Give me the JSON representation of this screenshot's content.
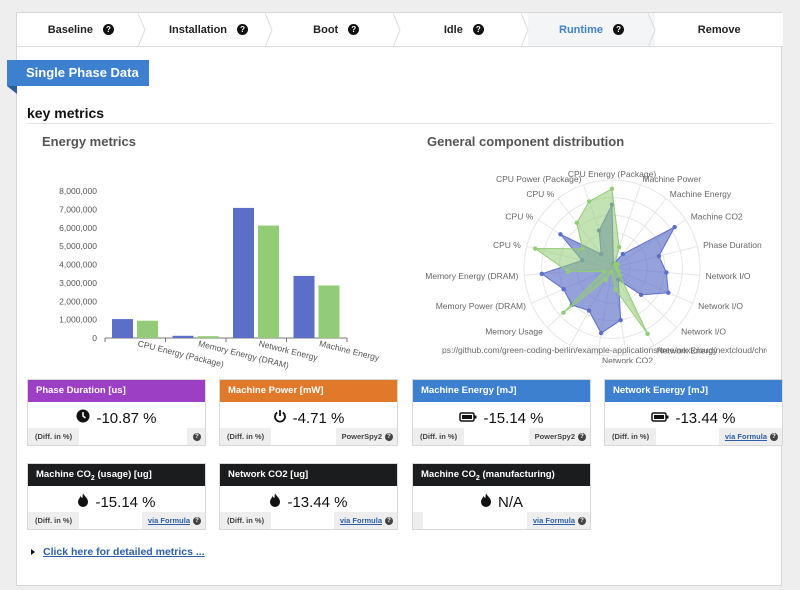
{
  "steps": [
    {
      "label": "Baseline",
      "active": false
    },
    {
      "label": "Installation",
      "active": false
    },
    {
      "label": "Boot",
      "active": false
    },
    {
      "label": "Idle",
      "active": false
    },
    {
      "label": "Runtime",
      "active": true
    },
    {
      "label": "Remove",
      "active": false
    }
  ],
  "ribbon": "Single Phase Data",
  "section_title": "key metrics",
  "energy_chart_title": "Energy metrics",
  "radar_chart_title": "General component distribution",
  "chart_data": [
    {
      "type": "bar",
      "categories": [
        "CPU Energy (Package)",
        "Memory Energy (DRAM)",
        "Network Energy",
        "Machine Energy"
      ],
      "series": [
        {
          "color": "#5b6fc8",
          "values": [
            1030000,
            120000,
            7080000,
            3380000
          ]
        },
        {
          "color": "#93cc76",
          "values": [
            940000,
            100000,
            6120000,
            2860000
          ]
        }
      ],
      "ylim": [
        0,
        8000000
      ],
      "yticks": [
        "0",
        "1,000,000",
        "2,000,000",
        "3,000,000",
        "4,000,000",
        "5,000,000",
        "6,000,000",
        "7,000,000",
        "8,000,000"
      ],
      "grid": false
    },
    {
      "type": "radar",
      "axes": [
        "CPU Energy (Package)",
        "Machine Power",
        "Machine Energy",
        "Machine CO2",
        "Phase Duration",
        "Network I/O",
        "Network I/O",
        "Network I/O",
        "Network Energy",
        "Network CO2",
        "ps://github.com/green-coding-berlin/example-applications/tree/nextcloud/nextcloud/chron",
        "ps://github.com/green-coding-berlin/example-applications/tree/nextcloud/nextcloud/chron",
        "Memory Usage",
        "Memory Power (DRAM)",
        "Memory Energy (DRAM)",
        "CPU %",
        "CPU %",
        "CPU %",
        "CPU Power (Package)"
      ],
      "series": [
        {
          "color": "#5b6fc8",
          "values": [
            0.72,
            0.05,
            0.2,
            0.85,
            0.55,
            0.62,
            0.7,
            0.45,
            0.15,
            0.6,
            0.75,
            0.55,
            0.62,
            0.6,
            0.8,
            0.35,
            0.7,
            0.2,
            0.45
          ]
        },
        {
          "color": "#93cc76",
          "values": [
            0.9,
            0.25,
            0.05,
            0.08,
            0.05,
            0.05,
            0.08,
            0.12,
            0.85,
            0.25,
            0.05,
            0.15,
            0.75,
            0.1,
            0.5,
            0.9,
            0.4,
            0.65,
            0.8
          ]
        }
      ]
    }
  ],
  "cards": [
    {
      "header": "Phase Duration [us]",
      "color": "#9c3fc4",
      "icon": "clock-icon",
      "value": "-10.87 %",
      "diff_label": "(Diff. in %)",
      "source": "",
      "source_link": false
    },
    {
      "header": "Machine Power [mW]",
      "color": "#e07a2a",
      "icon": "power-icon",
      "value": "-4.71 %",
      "diff_label": "(Diff. in %)",
      "source": "PowerSpy2",
      "source_link": false
    },
    {
      "header": "Machine Energy [mJ]",
      "color": "#3c80cf",
      "icon": "battery-icon",
      "value": "-15.14 %",
      "diff_label": "(Diff. in %)",
      "source": "PowerSpy2",
      "source_link": false
    },
    {
      "header": "Network Energy [mJ]",
      "color": "#3c80cf",
      "icon": "battery-icon",
      "value": "-13.44 %",
      "diff_label": "(Diff. in %)",
      "source": "via Formula",
      "source_link": true
    },
    {
      "header_main": "Machine CO",
      "header_sub": "2",
      "header_tail": " (usage) [ug]",
      "color": "#1b1c1d",
      "icon": "flame-icon",
      "value": "-15.14 %",
      "diff_label": "(Diff. in %)",
      "source": "via Formula",
      "source_link": true
    },
    {
      "header": "Network CO2 [ug]",
      "color": "#1b1c1d",
      "icon": "flame-icon",
      "value": "-13.44 %",
      "diff_label": "(Diff. in %)",
      "source": "via Formula",
      "source_link": true
    },
    {
      "header_main": "Machine CO",
      "header_sub": "2",
      "header_tail": " (manufacturing)",
      "color": "#1b1c1d",
      "icon": "flame-icon",
      "value": "N/A",
      "diff_label": "",
      "source": "via Formula",
      "source_link": true
    }
  ],
  "details_link": "Click here for detailed metrics ..."
}
